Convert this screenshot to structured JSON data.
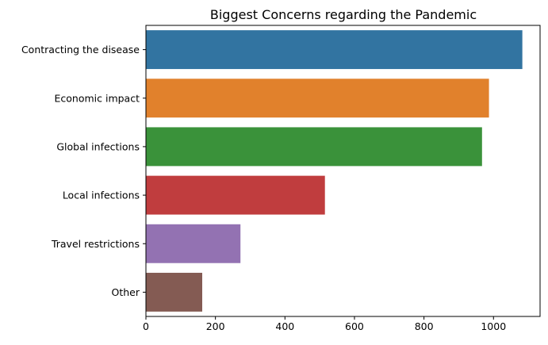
{
  "chart_data": {
    "type": "bar",
    "orientation": "horizontal",
    "title": "Biggest Concerns regarding the Pandemic",
    "xlabel": "",
    "ylabel": "",
    "categories": [
      "Contracting the disease",
      "Economic impact",
      "Global infections",
      "Local infections",
      "Travel restrictions",
      "Other"
    ],
    "values": [
      1083,
      987,
      967,
      515,
      272,
      162
    ],
    "colors": [
      "#3274a1",
      "#e1812c",
      "#3a923a",
      "#c03d3e",
      "#9372b2",
      "#845b53"
    ],
    "xlim": [
      0,
      1134
    ],
    "xticks": [
      0,
      200,
      400,
      600,
      800,
      1000
    ],
    "xtick_labels": [
      "0",
      "200",
      "400",
      "600",
      "800",
      "1000"
    ],
    "grid": false,
    "legend": "none"
  }
}
